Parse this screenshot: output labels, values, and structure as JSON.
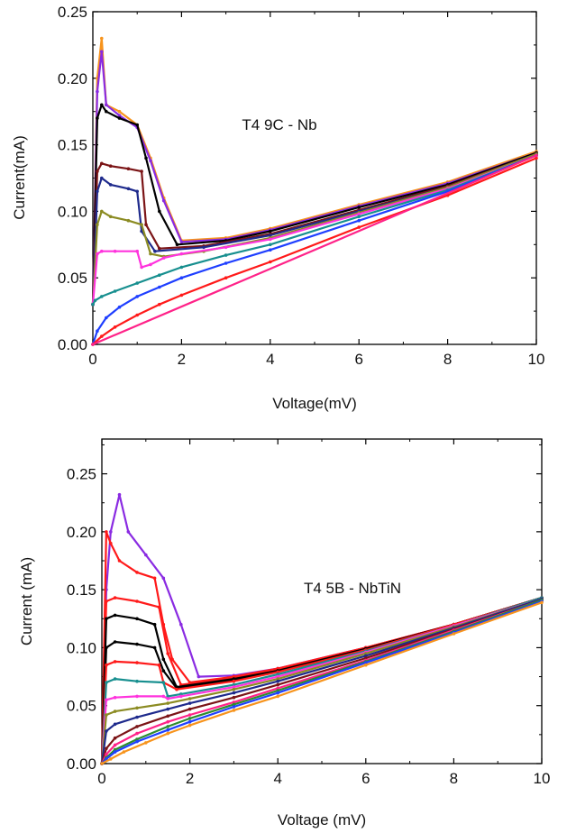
{
  "chart_data": [
    {
      "type": "line",
      "title": "T4 9C - Nb",
      "xlabel": "Voltage(mV)",
      "ylabel": "Current(mA)",
      "xlim": [
        0,
        10
      ],
      "ylim": [
        0,
        0.25
      ],
      "xticks": [
        0,
        2,
        4,
        6,
        8,
        10
      ],
      "yticks": [
        0.0,
        0.05,
        0.1,
        0.15,
        0.2,
        0.25
      ],
      "xtick_labels": [
        "0",
        "2",
        "4",
        "6",
        "8",
        "10"
      ],
      "ytick_labels": [
        "0.00",
        "0.05",
        "0.10",
        "0.15",
        "0.20",
        "0.25"
      ],
      "series": [
        {
          "color": "#f7941d",
          "x": [
            0,
            0.1,
            0.2,
            0.3,
            0.6,
            1.0,
            1.3,
            1.6,
            2.0,
            3.0,
            4.0,
            6.0,
            8.0,
            10.0
          ],
          "y": [
            0.03,
            0.2,
            0.23,
            0.18,
            0.175,
            0.165,
            0.14,
            0.11,
            0.078,
            0.08,
            0.087,
            0.105,
            0.122,
            0.145
          ]
        },
        {
          "color": "#8a2be2",
          "x": [
            0,
            0.1,
            0.2,
            0.3,
            0.6,
            1.0,
            1.3,
            1.6,
            2.0,
            3.0,
            4.0,
            6.0,
            8.0,
            10.0
          ],
          "y": [
            0.03,
            0.19,
            0.22,
            0.18,
            0.172,
            0.163,
            0.138,
            0.108,
            0.077,
            0.079,
            0.086,
            0.104,
            0.121,
            0.144
          ]
        },
        {
          "color": "#000000",
          "x": [
            0,
            0.1,
            0.2,
            0.3,
            0.6,
            1.0,
            1.2,
            1.5,
            1.9,
            3.0,
            4.0,
            6.0,
            8.0,
            10.0
          ],
          "y": [
            0.03,
            0.17,
            0.18,
            0.175,
            0.17,
            0.165,
            0.14,
            0.1,
            0.075,
            0.078,
            0.085,
            0.103,
            0.12,
            0.144
          ]
        },
        {
          "color": "#7b1416",
          "x": [
            0,
            0.1,
            0.2,
            0.4,
            0.8,
            1.1,
            1.2,
            1.5,
            2.5,
            4.0,
            6.0,
            8.0,
            10.0
          ],
          "y": [
            0.03,
            0.13,
            0.136,
            0.134,
            0.132,
            0.13,
            0.09,
            0.072,
            0.074,
            0.083,
            0.101,
            0.119,
            0.143
          ]
        },
        {
          "color": "#1e2a8c",
          "x": [
            0,
            0.1,
            0.2,
            0.4,
            0.8,
            1.0,
            1.1,
            1.4,
            2.5,
            4.0,
            6.0,
            8.0,
            10.0
          ],
          "y": [
            0.03,
            0.115,
            0.125,
            0.12,
            0.117,
            0.115,
            0.085,
            0.07,
            0.073,
            0.082,
            0.1,
            0.118,
            0.143
          ]
        },
        {
          "color": "#8b8b22",
          "x": [
            0,
            0.1,
            0.2,
            0.4,
            0.8,
            1.1,
            1.3,
            1.6,
            2.5,
            4.0,
            6.0,
            8.0,
            10.0
          ],
          "y": [
            0.03,
            0.09,
            0.1,
            0.096,
            0.093,
            0.09,
            0.068,
            0.066,
            0.07,
            0.08,
            0.099,
            0.118,
            0.143
          ]
        },
        {
          "color": "#ff33dd",
          "x": [
            0,
            0.1,
            0.2,
            0.5,
            1.0,
            1.1,
            1.3,
            1.6,
            2.0,
            3.0,
            4.0,
            6.0,
            8.0,
            10.0
          ],
          "y": [
            0.03,
            0.068,
            0.07,
            0.07,
            0.07,
            0.058,
            0.06,
            0.065,
            0.068,
            0.073,
            0.079,
            0.098,
            0.117,
            0.142
          ]
        },
        {
          "color": "#178f8f",
          "x": [
            0,
            0.05,
            0.2,
            0.5,
            1.0,
            1.5,
            2.0,
            3.0,
            4.0,
            6.0,
            8.0,
            10.0
          ],
          "y": [
            0.03,
            0.033,
            0.036,
            0.04,
            0.046,
            0.052,
            0.058,
            0.067,
            0.075,
            0.096,
            0.116,
            0.142
          ]
        },
        {
          "color": "#1f3fff",
          "x": [
            0,
            0.1,
            0.3,
            0.6,
            1.0,
            1.5,
            2.0,
            3.0,
            4.0,
            6.0,
            8.0,
            10.0
          ],
          "y": [
            0.0,
            0.01,
            0.02,
            0.028,
            0.036,
            0.043,
            0.05,
            0.061,
            0.071,
            0.093,
            0.115,
            0.142
          ]
        },
        {
          "color": "#ff1a1a",
          "x": [
            0,
            0.2,
            0.5,
            1.0,
            1.5,
            2.0,
            3.0,
            4.0,
            6.0,
            8.0,
            10.0
          ],
          "y": [
            0.0,
            0.006,
            0.013,
            0.022,
            0.03,
            0.037,
            0.05,
            0.062,
            0.088,
            0.112,
            0.14
          ]
        },
        {
          "color": "#ff2288",
          "x": [
            0,
            10
          ],
          "y": [
            0.0,
            0.142
          ]
        }
      ]
    },
    {
      "type": "line",
      "title": "T4 5B - NbTiN",
      "xlabel": "Voltage (mV)",
      "ylabel": "Current (mA)",
      "xlim": [
        0,
        10
      ],
      "ylim": [
        0,
        0.28
      ],
      "xticks": [
        0,
        2,
        4,
        6,
        8,
        10
      ],
      "yticks": [
        0.0,
        0.05,
        0.1,
        0.15,
        0.2,
        0.25
      ],
      "xtick_labels": [
        "0",
        "2",
        "4",
        "6",
        "8",
        "10"
      ],
      "ytick_labels": [
        "0.00",
        "0.05",
        "0.10",
        "0.15",
        "0.20",
        "0.25"
      ],
      "series": [
        {
          "color": "#8a2be2",
          "x": [
            0,
            0.1,
            0.2,
            0.4,
            0.6,
            1.0,
            1.4,
            1.8,
            2.2,
            3.0,
            4.0,
            6.0,
            8.0,
            10.0
          ],
          "y": [
            0.0,
            0.15,
            0.2,
            0.232,
            0.2,
            0.18,
            0.16,
            0.12,
            0.075,
            0.076,
            0.082,
            0.1,
            0.12,
            0.143
          ]
        },
        {
          "color": "#ff1a1a",
          "x": [
            0,
            0.1,
            0.2,
            0.4,
            0.8,
            1.2,
            1.4,
            1.6,
            2.0,
            3.0,
            4.0,
            6.0,
            8.0,
            10.0
          ],
          "y": [
            0.0,
            0.2,
            0.19,
            0.175,
            0.165,
            0.16,
            0.12,
            0.09,
            0.07,
            0.075,
            0.082,
            0.1,
            0.12,
            0.143
          ]
        },
        {
          "color": "#ff1a1a",
          "x": [
            0,
            0.1,
            0.3,
            0.8,
            1.3,
            1.5,
            1.8,
            3.0,
            4.0,
            6.0,
            8.0,
            10.0
          ],
          "y": [
            0.0,
            0.14,
            0.143,
            0.14,
            0.135,
            0.095,
            0.068,
            0.074,
            0.081,
            0.1,
            0.12,
            0.143
          ]
        },
        {
          "color": "#000000",
          "x": [
            0,
            0.1,
            0.3,
            0.8,
            1.2,
            1.4,
            1.7,
            3.0,
            4.0,
            6.0,
            8.0,
            10.0
          ],
          "y": [
            0.0,
            0.125,
            0.128,
            0.125,
            0.12,
            0.09,
            0.066,
            0.073,
            0.08,
            0.099,
            0.12,
            0.143
          ]
        },
        {
          "color": "#000000",
          "x": [
            0,
            0.1,
            0.3,
            0.8,
            1.2,
            1.4,
            1.7,
            3.0,
            4.0,
            6.0,
            8.0,
            10.0
          ],
          "y": [
            0.0,
            0.1,
            0.105,
            0.103,
            0.1,
            0.08,
            0.065,
            0.072,
            0.08,
            0.099,
            0.12,
            0.143
          ]
        },
        {
          "color": "#ff1a1a",
          "x": [
            0,
            0.1,
            0.3,
            0.8,
            1.3,
            1.4,
            1.7,
            3.0,
            4.0,
            6.0,
            8.0,
            10.0
          ],
          "y": [
            0.0,
            0.085,
            0.088,
            0.087,
            0.085,
            0.07,
            0.064,
            0.071,
            0.079,
            0.098,
            0.12,
            0.143
          ]
        },
        {
          "color": "#178f8f",
          "x": [
            0,
            0.1,
            0.3,
            0.8,
            1.4,
            1.5,
            1.8,
            3.0,
            4.0,
            6.0,
            8.0,
            10.0
          ],
          "y": [
            0.0,
            0.07,
            0.073,
            0.071,
            0.07,
            0.058,
            0.06,
            0.068,
            0.077,
            0.097,
            0.119,
            0.143
          ]
        },
        {
          "color": "#ff33dd",
          "x": [
            0,
            0.1,
            0.3,
            0.8,
            1.4,
            1.5,
            1.8,
            3.0,
            4.0,
            6.0,
            8.0,
            10.0
          ],
          "y": [
            0.0,
            0.055,
            0.057,
            0.058,
            0.058,
            0.056,
            0.058,
            0.066,
            0.075,
            0.096,
            0.119,
            0.142
          ]
        },
        {
          "color": "#8b8b22",
          "x": [
            0,
            0.1,
            0.3,
            0.8,
            1.5,
            2.0,
            3.0,
            4.0,
            6.0,
            8.0,
            10.0
          ],
          "y": [
            0.0,
            0.042,
            0.045,
            0.048,
            0.052,
            0.056,
            0.064,
            0.073,
            0.095,
            0.118,
            0.142
          ]
        },
        {
          "color": "#1e2a8c",
          "x": [
            0,
            0.1,
            0.3,
            0.8,
            1.5,
            2.0,
            3.0,
            4.0,
            6.0,
            8.0,
            10.0
          ],
          "y": [
            0.0,
            0.028,
            0.034,
            0.04,
            0.047,
            0.052,
            0.061,
            0.071,
            0.093,
            0.117,
            0.142
          ]
        },
        {
          "color": "#7b1416",
          "x": [
            0,
            0.1,
            0.3,
            0.8,
            1.5,
            2.0,
            3.0,
            4.0,
            6.0,
            8.0,
            10.0
          ],
          "y": [
            0.0,
            0.013,
            0.022,
            0.032,
            0.041,
            0.047,
            0.057,
            0.068,
            0.091,
            0.116,
            0.141
          ]
        },
        {
          "color": "#ff2288",
          "x": [
            0,
            0.1,
            0.3,
            0.8,
            1.5,
            2.0,
            3.0,
            4.0,
            6.0,
            8.0,
            10.0
          ],
          "y": [
            0.0,
            0.008,
            0.016,
            0.026,
            0.036,
            0.042,
            0.053,
            0.065,
            0.089,
            0.115,
            0.141
          ]
        },
        {
          "color": "#2e8b2e",
          "x": [
            0,
            0.1,
            0.3,
            0.8,
            1.5,
            2.0,
            3.0,
            4.0,
            6.0,
            8.0,
            10.0
          ],
          "y": [
            0.0,
            0.005,
            0.012,
            0.021,
            0.032,
            0.039,
            0.051,
            0.063,
            0.088,
            0.114,
            0.141
          ]
        },
        {
          "color": "#1f3fff",
          "x": [
            0,
            0.1,
            0.3,
            0.8,
            1.5,
            2.0,
            3.0,
            4.0,
            6.0,
            8.0,
            10.0
          ],
          "y": [
            0.0,
            0.004,
            0.01,
            0.019,
            0.029,
            0.036,
            0.049,
            0.061,
            0.087,
            0.113,
            0.14
          ]
        },
        {
          "color": "#f7941d",
          "x": [
            0,
            0.2,
            0.5,
            1.0,
            1.5,
            2.0,
            3.0,
            4.0,
            6.0,
            8.0,
            10.0
          ],
          "y": [
            0.0,
            0.004,
            0.01,
            0.018,
            0.026,
            0.033,
            0.046,
            0.058,
            0.085,
            0.112,
            0.139
          ]
        }
      ]
    }
  ]
}
